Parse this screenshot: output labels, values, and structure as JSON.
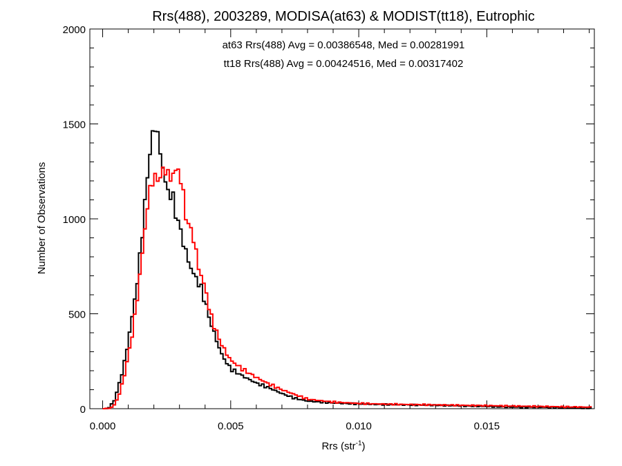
{
  "chart_data": {
    "type": "line",
    "style": "histogram-step",
    "title": "Rrs(488), 2003289, MODISA(at63) & MODIST(tt18), Eutrophic",
    "xlabel": "Rrs (str",
    "xlabel_sup": "-1",
    "xlabel_close": ")",
    "ylabel": "Number of Observations",
    "xlim": [
      -0.0005,
      0.0192
    ],
    "ylim": [
      0,
      2000
    ],
    "xticks": [
      0.0,
      0.005,
      0.01,
      0.015
    ],
    "xtick_labels": [
      "0.000",
      "0.005",
      "0.010",
      "0.015"
    ],
    "yticks": [
      0,
      500,
      1000,
      1500,
      2000
    ],
    "ytick_labels": [
      "0",
      "500",
      "1000",
      "1500",
      "2000"
    ],
    "bin_width": 0.0001,
    "annotations": [
      "at63 Rrs(488) Avg = 0.00386548, Med = 0.00281991",
      "tt18 Rrs(488) Avg = 0.00424516, Med = 0.00317402"
    ],
    "colors": {
      "at63": "#000000",
      "tt18": "#ff0000"
    },
    "series": [
      {
        "color": "#000000",
        "x": [
          0.0,
          0.0002,
          0.0004,
          0.0005,
          0.0006,
          0.0007,
          0.0008,
          0.0009,
          0.001,
          0.0011,
          0.0012,
          0.0013,
          0.0014,
          0.0015,
          0.0016,
          0.0017,
          0.0018,
          0.0019,
          0.002,
          0.0021,
          0.0022,
          0.0023,
          0.0024,
          0.0025,
          0.0026,
          0.0027,
          0.0028,
          0.0029,
          0.003,
          0.0031,
          0.0032,
          0.0033,
          0.0034,
          0.0035,
          0.0036,
          0.0037,
          0.0038,
          0.0039,
          0.004,
          0.0042,
          0.0044,
          0.0046,
          0.0048,
          0.005,
          0.0055,
          0.006,
          0.0065,
          0.007,
          0.0075,
          0.008,
          0.009,
          0.01,
          0.011,
          0.012,
          0.013,
          0.014,
          0.015,
          0.016,
          0.017,
          0.018,
          0.0191
        ],
        "values": [
          0,
          0,
          30,
          60,
          110,
          160,
          210,
          280,
          360,
          440,
          530,
          620,
          720,
          870,
          1000,
          1150,
          1300,
          1400,
          1480,
          1490,
          1400,
          1290,
          1250,
          1150,
          1120,
          1150,
          1060,
          1000,
          970,
          900,
          850,
          800,
          760,
          720,
          700,
          680,
          640,
          620,
          560,
          460,
          380,
          300,
          250,
          210,
          170,
          135,
          110,
          80,
          55,
          40,
          30,
          25,
          22,
          20,
          18,
          15,
          12,
          8,
          8,
          5,
          3
        ]
      },
      {
        "color": "#ff0000",
        "x": [
          0.0,
          0.0002,
          0.0004,
          0.0005,
          0.0006,
          0.0007,
          0.0008,
          0.0009,
          0.001,
          0.0011,
          0.0012,
          0.0013,
          0.0014,
          0.0015,
          0.0016,
          0.0017,
          0.0018,
          0.0019,
          0.002,
          0.0021,
          0.0022,
          0.0023,
          0.0024,
          0.0025,
          0.0026,
          0.0027,
          0.0028,
          0.0029,
          0.003,
          0.0031,
          0.0032,
          0.0033,
          0.0034,
          0.0035,
          0.0036,
          0.0037,
          0.0038,
          0.0039,
          0.004,
          0.0042,
          0.0044,
          0.0046,
          0.0048,
          0.005,
          0.0055,
          0.006,
          0.0065,
          0.007,
          0.0075,
          0.008,
          0.009,
          0.01,
          0.011,
          0.012,
          0.013,
          0.014,
          0.015,
          0.016,
          0.017,
          0.018,
          0.0191
        ],
        "values": [
          0,
          0,
          10,
          30,
          60,
          100,
          150,
          210,
          280,
          350,
          430,
          530,
          640,
          760,
          880,
          1010,
          1120,
          1180,
          1230,
          1200,
          1210,
          1250,
          1240,
          1280,
          1200,
          1210,
          1270,
          1250,
          1240,
          1190,
          1050,
          990,
          950,
          930,
          870,
          770,
          720,
          680,
          640,
          500,
          420,
          350,
          300,
          255,
          205,
          165,
          130,
          100,
          75,
          50,
          35,
          28,
          24,
          22,
          20,
          18,
          16,
          14,
          12,
          10,
          8
        ]
      }
    ]
  }
}
